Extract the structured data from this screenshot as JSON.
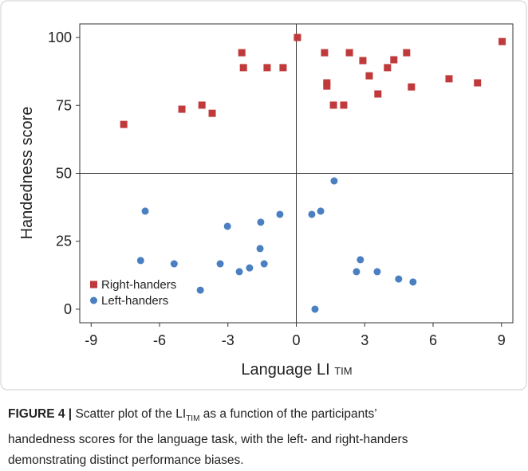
{
  "chart_data": {
    "type": "scatter",
    "xlabel": "Language LI",
    "xlabel_sub": "TIM",
    "ylabel": "Handedness score",
    "xlim": [
      -9.5,
      9.5
    ],
    "ylim": [
      -5,
      105
    ],
    "xticks": [
      -9,
      -6,
      -3,
      0,
      3,
      6,
      9
    ],
    "yticks": [
      0,
      25,
      50,
      75,
      100
    ],
    "vlines": [
      0
    ],
    "hlines": [
      50
    ],
    "legend": "lower left",
    "series": [
      {
        "name": "Right-handers",
        "color": "#c0393b",
        "marker": "square",
        "x": [
          -7.57,
          -5.02,
          -4.14,
          -3.69,
          -2.39,
          -2.32,
          -1.28,
          -0.58,
          0.05,
          1.24,
          1.34,
          1.34,
          1.63,
          2.08,
          2.33,
          2.92,
          3.2,
          3.58,
          4.0,
          4.28,
          4.84,
          5.05,
          6.7,
          7.95,
          9.03
        ],
        "values": [
          68,
          73.6,
          75.1,
          72.1,
          94.4,
          88.9,
          88.9,
          88.9,
          100,
          94.4,
          83.3,
          82.1,
          75.1,
          75.1,
          94.4,
          91.5,
          85.9,
          79.2,
          88.9,
          91.8,
          94.4,
          81.8,
          84.8,
          83.3,
          98.5
        ]
      },
      {
        "name": "Left-handers",
        "color": "#4a7fc1",
        "marker": "circle",
        "x": [
          -6.63,
          -6.83,
          -5.36,
          -4.21,
          -3.02,
          -3.34,
          -2.5,
          -2.05,
          -1.56,
          -1.59,
          -1.41,
          -0.72,
          0.68,
          1.07,
          1.66,
          0.82,
          2.64,
          2.81,
          3.55,
          4.49,
          5.12
        ],
        "values": [
          36.1,
          17.9,
          16.7,
          7,
          30.5,
          16.7,
          13.8,
          15.2,
          32,
          22.3,
          16.7,
          34.9,
          34.9,
          36.1,
          47.2,
          0,
          13.8,
          18.2,
          13.8,
          11.1,
          10
        ]
      }
    ]
  },
  "caption": {
    "label": "FIGURE 4 |",
    "text_1": "Scatter plot of the LI",
    "sub": "TIM",
    "text_2": "as a function of the participants’",
    "line_2": "handedness scores for the language task, with the left- and right-handers",
    "line_3": "demonstrating distinct performance biases."
  }
}
